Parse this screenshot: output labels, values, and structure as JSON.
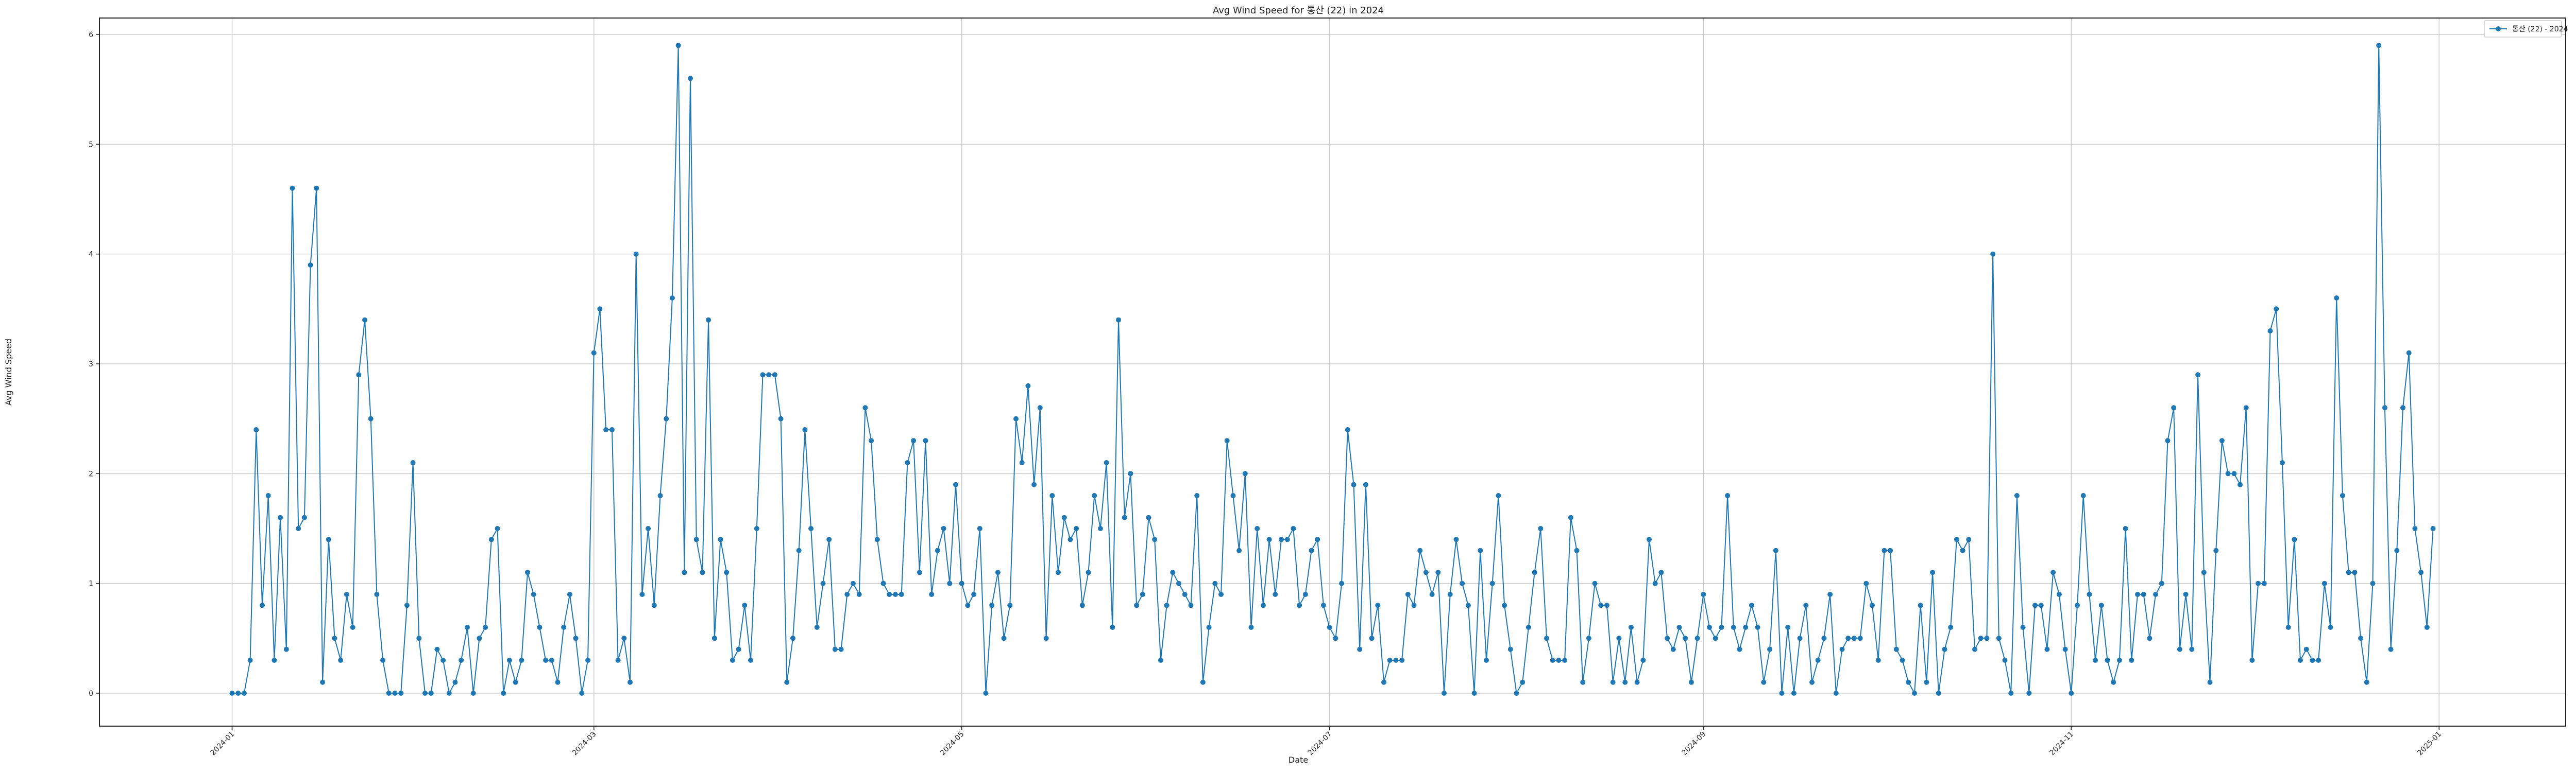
{
  "chart_data": {
    "type": "line",
    "title": "Avg Wind Speed for 통산 (22) in 2024",
    "xlabel": "Date",
    "ylabel": "Avg Wind Speed",
    "x_start": "2024-01-01",
    "x_range": [
      "2023-12-10",
      "2025-01-22"
    ],
    "ylim": [
      -0.3,
      6.15
    ],
    "y_ticks": [
      0,
      1,
      2,
      3,
      4,
      5,
      6
    ],
    "x_ticks": [
      "2024-01",
      "2024-03",
      "2024-05",
      "2024-07",
      "2024-09",
      "2024-11",
      "2025-01"
    ],
    "grid": true,
    "legend_position": "top-right",
    "series": [
      {
        "name": "통산 (22) - 2024",
        "color": "#1f77b4",
        "marker": "circle",
        "values": [
          0,
          0,
          0,
          0.3,
          2.4,
          0.8,
          1.8,
          0.3,
          1.6,
          0.4,
          4.6,
          1.5,
          1.6,
          3.9,
          4.6,
          0.1,
          1.4,
          0.5,
          0.3,
          0.9,
          0.6,
          2.9,
          3.4,
          2.5,
          0.9,
          0.3,
          0,
          0,
          0,
          0.8,
          2.1,
          0.5,
          0,
          0,
          0.4,
          0.3,
          0,
          0.1,
          0.3,
          0.6,
          0,
          0.5,
          0.6,
          1.4,
          1.5,
          0,
          0.3,
          0.1,
          0.3,
          1.1,
          0.9,
          0.6,
          0.3,
          0.3,
          0.1,
          0.6,
          0.9,
          0.5,
          0,
          0.3,
          3.1,
          3.5,
          2.4,
          2.4,
          0.3,
          0.5,
          0.1,
          4.0,
          0.9,
          1.5,
          0.8,
          1.8,
          2.5,
          3.6,
          5.9,
          1.1,
          5.6,
          1.4,
          1.1,
          3.4,
          0.5,
          1.4,
          1.1,
          0.3,
          0.4,
          0.8,
          0.3,
          1.5,
          2.9,
          2.9,
          2.9,
          2.5,
          0.1,
          0.5,
          1.3,
          2.4,
          1.5,
          0.6,
          1.0,
          1.4,
          0.4,
          0.4,
          0.9,
          1.0,
          0.9,
          2.6,
          2.3,
          1.4,
          1.0,
          0.9,
          0.9,
          0.9,
          2.1,
          2.3,
          1.1,
          2.3,
          0.9,
          1.3,
          1.5,
          1.0,
          1.9,
          1.0,
          0.8,
          0.9,
          1.5,
          0,
          0.8,
          1.1,
          0.5,
          0.8,
          2.5,
          2.1,
          2.8,
          1.9,
          2.6,
          0.5,
          1.8,
          1.1,
          1.6,
          1.4,
          1.5,
          0.8,
          1.1,
          1.8,
          1.5,
          2.1,
          0.6,
          3.4,
          1.6,
          2.0,
          0.8,
          0.9,
          1.6,
          1.4,
          0.3,
          0.8,
          1.1,
          1.0,
          0.9,
          0.8,
          1.8,
          0.1,
          0.6,
          1.0,
          0.9,
          2.3,
          1.8,
          1.3,
          2.0,
          0.6,
          1.5,
          0.8,
          1.4,
          0.9,
          1.4,
          1.4,
          1.5,
          0.8,
          0.9,
          1.3,
          1.4,
          0.8,
          0.6,
          0.5,
          1.0,
          2.4,
          1.9,
          0.4,
          1.9,
          0.5,
          0.8,
          0.1,
          0.3,
          0.3,
          0.3,
          0.9,
          0.8,
          1.3,
          1.1,
          0.9,
          1.1,
          0,
          0.9,
          1.4,
          1.0,
          0.8,
          0,
          1.3,
          0.3,
          1.0,
          1.8,
          0.8,
          0.4,
          0,
          0.1,
          0.6,
          1.1,
          1.5,
          0.5,
          0.3,
          0.3,
          0.3,
          1.6,
          1.3,
          0.1,
          0.5,
          1.0,
          0.8,
          0.8,
          0.1,
          0.5,
          0.1,
          0.6,
          0.1,
          0.3,
          1.4,
          1.0,
          1.1,
          0.5,
          0.4,
          0.6,
          0.5,
          0.1,
          0.5,
          0.9,
          0.6,
          0.5,
          0.6,
          1.8,
          0.6,
          0.4,
          0.6,
          0.8,
          0.6,
          0.1,
          0.4,
          1.3,
          0,
          0.6,
          0,
          0.5,
          0.8,
          0.1,
          0.3,
          0.5,
          0.9,
          0,
          0.4,
          0.5,
          0.5,
          0.5,
          1.0,
          0.8,
          0.3,
          1.3,
          1.3,
          0.4,
          0.3,
          0.1,
          0,
          0.8,
          0.1,
          1.1,
          0,
          0.4,
          0.6,
          1.4,
          1.3,
          1.4,
          0.4,
          0.5,
          0.5,
          4.0,
          0.5,
          0.3,
          0,
          1.8,
          0.6,
          0,
          0.8,
          0.8,
          0.4,
          1.1,
          0.9,
          0.4,
          0,
          0.8,
          1.8,
          0.9,
          0.3,
          0.8,
          0.3,
          0.1,
          0.3,
          1.5,
          0.3,
          0.9,
          0.9,
          0.5,
          0.9,
          1.0,
          2.3,
          2.6,
          0.4,
          0.9,
          0.4,
          2.9,
          1.1,
          0.1,
          1.3,
          2.3,
          2.0,
          2.0,
          1.9,
          2.6,
          0.3,
          1.0,
          1.0,
          3.3,
          3.5,
          2.1,
          0.6,
          1.4,
          0.3,
          0.4,
          0.3,
          0.3,
          1.0,
          0.6,
          3.6,
          1.8,
          1.1,
          1.1,
          0.5,
          0.1,
          1.0,
          5.9,
          2.6,
          0.4,
          1.3,
          2.6,
          3.1,
          1.5,
          1.1,
          0.6,
          1.5
        ]
      }
    ]
  }
}
